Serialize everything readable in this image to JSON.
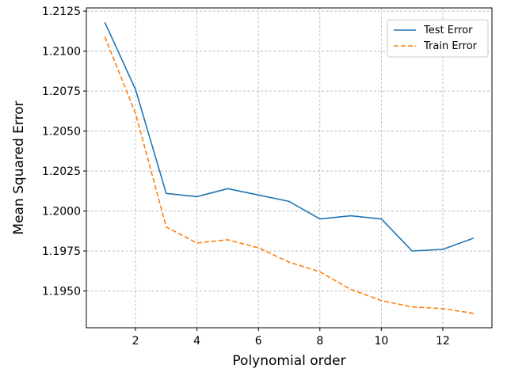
{
  "chart_data": {
    "type": "line",
    "title": "",
    "xlabel": "Polynomial order",
    "ylabel": "Mean Squared Error",
    "x": [
      1,
      2,
      3,
      4,
      5,
      6,
      7,
      8,
      9,
      10,
      11,
      12,
      13
    ],
    "xlim": [
      0.4,
      13.6
    ],
    "ylim": [
      1.1927,
      1.2127
    ],
    "xticks": [
      2,
      4,
      6,
      8,
      10,
      12
    ],
    "xtick_labels": [
      "2",
      "4",
      "6",
      "8",
      "10",
      "12"
    ],
    "yticks": [
      1.195,
      1.1975,
      1.2,
      1.2025,
      1.205,
      1.2075,
      1.21,
      1.2125
    ],
    "ytick_labels": [
      "1.1950",
      "1.1975",
      "1.2000",
      "1.2025",
      "1.2050",
      "1.2075",
      "1.2100",
      "1.2125"
    ],
    "grid": true,
    "legend_position": "top-right",
    "series": [
      {
        "name": "Test Error",
        "color": "#1f77b4",
        "style": "solid",
        "values": [
          1.2118,
          1.2076,
          1.2011,
          1.2009,
          1.2014,
          1.201,
          1.2006,
          1.1995,
          1.1997,
          1.1995,
          1.1975,
          1.1976,
          1.1983
        ]
      },
      {
        "name": "Train Error",
        "color": "#ff7f0e",
        "style": "dashed",
        "values": [
          1.2109,
          1.2061,
          1.199,
          1.198,
          1.1982,
          1.1977,
          1.1968,
          1.1962,
          1.1951,
          1.1944,
          1.194,
          1.1939,
          1.1936
        ]
      }
    ]
  }
}
